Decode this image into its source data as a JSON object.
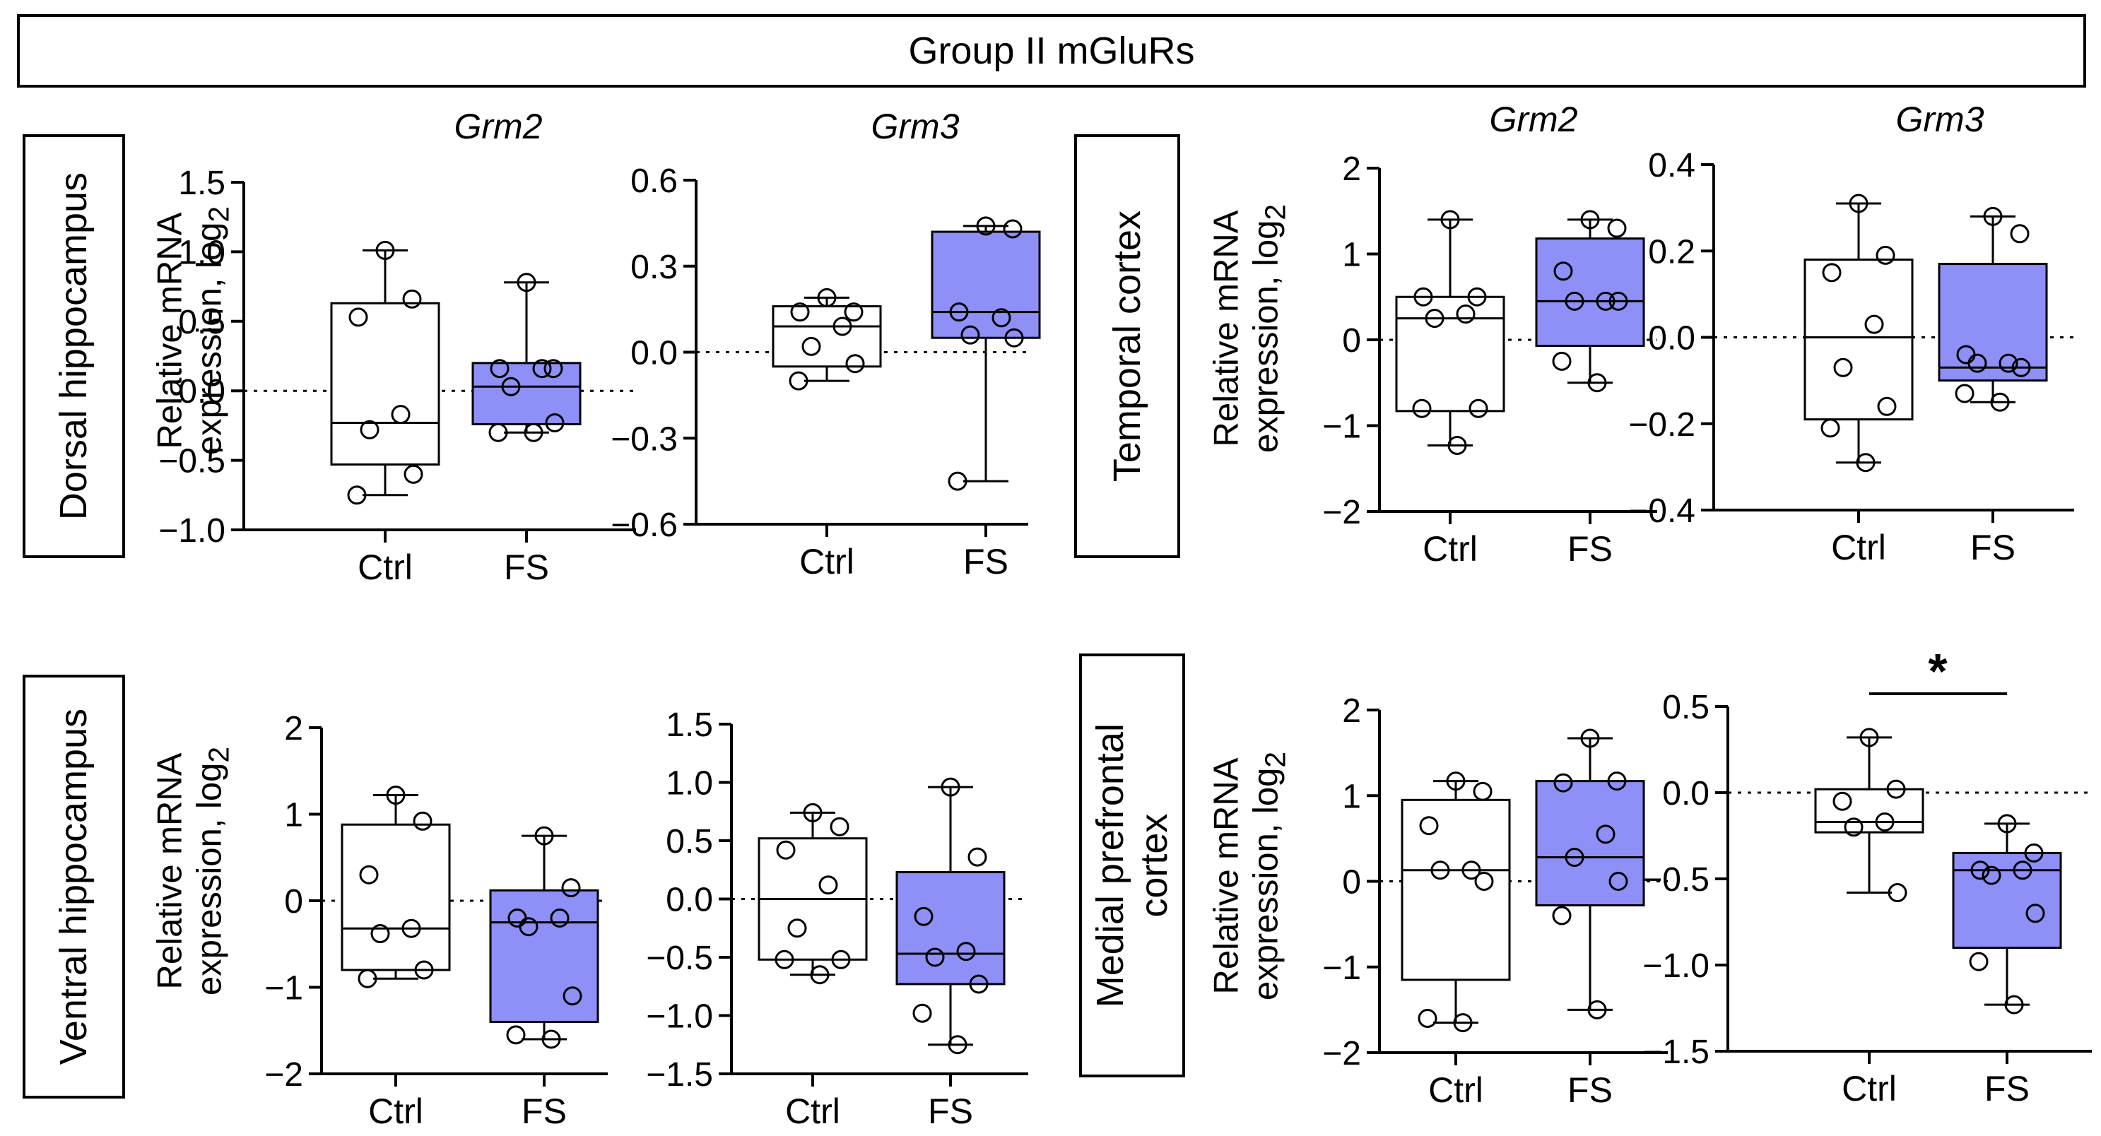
{
  "figure_title": "Group II mGluRs",
  "regions": [
    {
      "lines": [
        "Dorsal hippocampus"
      ]
    },
    {
      "lines": [
        "Ventral hippocampus"
      ]
    },
    {
      "lines": [
        "Temporal cortex"
      ]
    },
    {
      "lines": [
        "Medial prefrontal",
        "cortex"
      ]
    }
  ],
  "ylabel_lines": [
    "Relative mRNA",
    "expression, log"
  ],
  "ylabel_sub": "2",
  "genes": [
    "Grm2",
    "Grm3"
  ],
  "significance_symbol": "*",
  "colors": {
    "ctrl_fill": "#ffffff",
    "fs_fill": "#8f8ff8",
    "line": "#000000"
  },
  "chart_data": [
    {
      "type": "box",
      "title": "Grm2",
      "region": "Dorsal hippocampus",
      "categories": [
        "Ctrl",
        "FS"
      ],
      "ylim": [
        -1.0,
        1.5
      ],
      "yticks": [
        "-1.0",
        "-0.5",
        "0.0",
        "0.5",
        "1.0",
        "1.5"
      ],
      "reference_line": 0,
      "boxes": [
        {
          "min": -0.75,
          "q1": -0.53,
          "median": -0.23,
          "q3": 0.63,
          "max": 1.01
        },
        {
          "min": -0.3,
          "q1": -0.24,
          "median": 0.03,
          "q3": 0.2,
          "max": 0.78
        }
      ],
      "points": [
        [
          1.01,
          0.66,
          0.53,
          -0.17,
          -0.28,
          -0.6,
          -0.75
        ],
        [
          0.78,
          0.16,
          0.16,
          0.16,
          0.03,
          -0.23,
          -0.3,
          -0.3
        ]
      ]
    },
    {
      "type": "box",
      "title": "Grm3",
      "region": "Dorsal hippocampus",
      "categories": [
        "Ctrl",
        "FS"
      ],
      "ylim": [
        -0.6,
        0.6
      ],
      "yticks": [
        "-0.6",
        "-0.3",
        "0.0",
        "0.3",
        "0.6"
      ],
      "reference_line": 0,
      "boxes": [
        {
          "min": -0.1,
          "q1": -0.05,
          "median": 0.09,
          "q3": 0.16,
          "max": 0.19
        },
        {
          "min": -0.45,
          "q1": 0.05,
          "median": 0.14,
          "q3": 0.42,
          "max": 0.44
        }
      ],
      "points": [
        [
          0.19,
          0.14,
          0.14,
          0.09,
          0.02,
          -0.04,
          -0.1
        ],
        [
          0.44,
          0.43,
          0.14,
          0.12,
          0.06,
          0.05,
          -0.45
        ]
      ]
    },
    {
      "type": "box",
      "title": "Grm2",
      "region": "Temporal cortex",
      "categories": [
        "Ctrl",
        "FS"
      ],
      "ylim": [
        -2,
        2
      ],
      "yticks": [
        "-2",
        "-1",
        "0",
        "1",
        "2"
      ],
      "reference_line": 0,
      "boxes": [
        {
          "min": -1.23,
          "q1": -0.83,
          "median": 0.25,
          "q3": 0.5,
          "max": 1.4
        },
        {
          "min": -0.5,
          "q1": -0.07,
          "median": 0.45,
          "q3": 1.18,
          "max": 1.4
        }
      ],
      "points": [
        [
          1.4,
          0.5,
          0.5,
          0.3,
          0.25,
          -0.8,
          -0.8,
          -1.23
        ],
        [
          1.4,
          1.3,
          0.8,
          0.45,
          0.45,
          0.45,
          -0.25,
          -0.5
        ]
      ]
    },
    {
      "type": "box",
      "title": "Grm3",
      "region": "Temporal cortex",
      "categories": [
        "Ctrl",
        "FS"
      ],
      "ylim": [
        -0.4,
        0.4
      ],
      "yticks": [
        "-0.4",
        "-0.2",
        "0.0",
        "0.2",
        "0.4"
      ],
      "reference_line": 0,
      "boxes": [
        {
          "min": -0.29,
          "q1": -0.19,
          "median": 0.0,
          "q3": 0.18,
          "max": 0.31
        },
        {
          "min": -0.15,
          "q1": -0.1,
          "median": -0.07,
          "q3": 0.17,
          "max": 0.28
        }
      ],
      "points": [
        [
          0.31,
          0.19,
          0.15,
          0.03,
          -0.07,
          -0.16,
          -0.21,
          -0.29
        ],
        [
          0.28,
          0.24,
          -0.04,
          -0.06,
          -0.06,
          -0.07,
          -0.13,
          -0.15
        ]
      ]
    },
    {
      "type": "box",
      "title": "",
      "region": "Ventral hippocampus",
      "categories": [
        "Ctrl",
        "FS"
      ],
      "ylim": [
        -2,
        2
      ],
      "yticks": [
        "-2",
        "-1",
        "0",
        "1",
        "2"
      ],
      "reference_line": 0,
      "boxes": [
        {
          "min": -0.9,
          "q1": -0.8,
          "median": -0.32,
          "q3": 0.88,
          "max": 1.22
        },
        {
          "min": -1.6,
          "q1": -1.4,
          "median": -0.25,
          "q3": 0.12,
          "max": 0.75
        }
      ],
      "points": [
        [
          1.22,
          0.92,
          0.3,
          -0.32,
          -0.38,
          -0.8,
          -0.9
        ],
        [
          0.75,
          0.15,
          -0.2,
          -0.2,
          -0.3,
          -1.1,
          -1.55,
          -1.6
        ]
      ]
    },
    {
      "type": "box",
      "title": "",
      "region": "Ventral hippocampus",
      "categories": [
        "Ctrl",
        "FS"
      ],
      "ylim": [
        -1.5,
        1.5
      ],
      "yticks": [
        "-1.5",
        "-1.0",
        "-0.5",
        "0.0",
        "0.5",
        "1.0",
        "1.5"
      ],
      "reference_line": 0,
      "boxes": [
        {
          "min": -0.65,
          "q1": -0.52,
          "median": 0.0,
          "q3": 0.52,
          "max": 0.74
        },
        {
          "min": -1.25,
          "q1": -0.73,
          "median": -0.47,
          "q3": 0.23,
          "max": 0.96
        }
      ],
      "points": [
        [
          0.74,
          0.62,
          0.42,
          0.12,
          -0.25,
          -0.52,
          -0.52,
          -0.65
        ],
        [
          0.96,
          0.36,
          -0.15,
          -0.45,
          -0.5,
          -0.73,
          -0.98,
          -1.25
        ]
      ]
    },
    {
      "type": "box",
      "title": "",
      "region": "Medial prefrontal cortex",
      "categories": [
        "Ctrl",
        "FS"
      ],
      "ylim": [
        -2,
        2
      ],
      "yticks": [
        "-2",
        "-1",
        "0",
        "1",
        "2"
      ],
      "reference_line": 0,
      "boxes": [
        {
          "min": -1.65,
          "q1": -1.15,
          "median": 0.13,
          "q3": 0.95,
          "max": 1.17
        },
        {
          "min": -1.5,
          "q1": -0.28,
          "median": 0.28,
          "q3": 1.17,
          "max": 1.67
        }
      ],
      "points": [
        [
          1.17,
          1.05,
          0.65,
          0.13,
          0.13,
          0.0,
          -1.6,
          -1.65
        ],
        [
          1.67,
          1.17,
          1.15,
          0.55,
          0.28,
          0.0,
          -0.4,
          -1.5
        ]
      ]
    },
    {
      "type": "box",
      "title": "",
      "region": "Medial prefrontal cortex",
      "categories": [
        "Ctrl",
        "FS"
      ],
      "ylim": [
        -1.5,
        0.5
      ],
      "yticks": [
        "-1.5",
        "-1.0",
        "-0.5",
        "0.0",
        "0.5"
      ],
      "reference_line": 0,
      "significance": {
        "symbol": "*",
        "between": [
          "Ctrl",
          "FS"
        ]
      },
      "boxes": [
        {
          "min": -0.58,
          "q1": -0.23,
          "median": -0.17,
          "q3": 0.02,
          "max": 0.32
        },
        {
          "min": -1.23,
          "q1": -0.9,
          "median": -0.45,
          "q3": -0.35,
          "max": -0.18
        }
      ],
      "points": [
        [
          0.32,
          0.02,
          -0.05,
          -0.17,
          -0.2,
          -0.58
        ],
        [
          -0.18,
          -0.35,
          -0.45,
          -0.45,
          -0.48,
          -0.7,
          -0.98,
          -1.23
        ]
      ]
    }
  ]
}
